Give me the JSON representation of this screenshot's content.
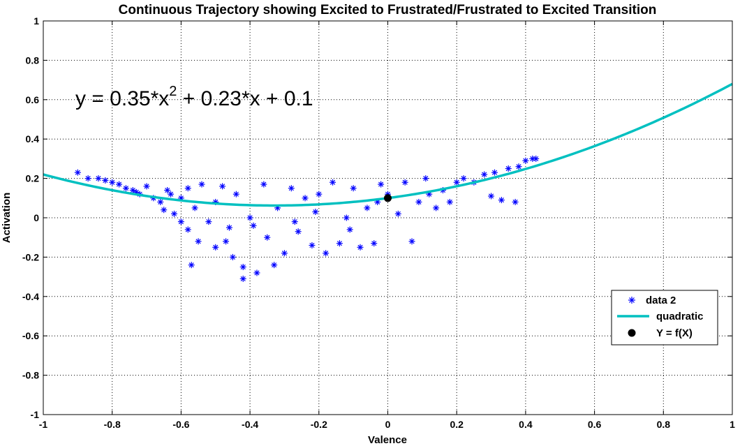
{
  "chart_data": {
    "type": "scatter",
    "title": "Continuous Trajectory showing Excited to Frustrated/Frustrated to Excited Transition",
    "xlabel": "Valence",
    "ylabel": "Activation",
    "xlim": [
      -1,
      1
    ],
    "ylim": [
      -1,
      1
    ],
    "grid": true,
    "xticks": [
      "-1",
      "-0.8",
      "-0.6",
      "-0.4",
      "-0.2",
      "0",
      "0.2",
      "0.4",
      "0.6",
      "0.8",
      "1"
    ],
    "yticks": [
      "1",
      "0.8",
      "0.6",
      "0.4",
      "0.2",
      "0",
      "-0.2",
      "-0.4",
      "-0.6",
      "-0.8",
      "-1"
    ],
    "annotation": "y = 0.35*x^2 + 0.23*x + 0.1",
    "legend_position": "bottom-right",
    "series": [
      {
        "name": "data 2",
        "kind": "scatter",
        "marker": "asterisk",
        "color": "#0000ff",
        "points": [
          [
            -0.9,
            0.23
          ],
          [
            -0.87,
            0.2
          ],
          [
            -0.84,
            0.2
          ],
          [
            -0.82,
            0.19
          ],
          [
            -0.8,
            0.18
          ],
          [
            -0.78,
            0.17
          ],
          [
            -0.76,
            0.15
          ],
          [
            -0.74,
            0.14
          ],
          [
            -0.72,
            0.12
          ],
          [
            -0.7,
            0.16
          ],
          [
            -0.68,
            0.1
          ],
          [
            -0.66,
            0.08
          ],
          [
            -0.65,
            0.04
          ],
          [
            -0.63,
            0.12
          ],
          [
            -0.62,
            0.02
          ],
          [
            -0.6,
            0.1
          ],
          [
            -0.6,
            -0.02
          ],
          [
            -0.58,
            0.15
          ],
          [
            -0.58,
            -0.06
          ],
          [
            -0.56,
            0.05
          ],
          [
            -0.55,
            -0.12
          ],
          [
            -0.54,
            0.17
          ],
          [
            -0.52,
            -0.02
          ],
          [
            -0.5,
            0.08
          ],
          [
            -0.5,
            -0.15
          ],
          [
            -0.48,
            0.16
          ],
          [
            -0.46,
            -0.05
          ],
          [
            -0.45,
            -0.2
          ],
          [
            -0.44,
            0.12
          ],
          [
            -0.42,
            -0.25
          ],
          [
            -0.42,
            -0.31
          ],
          [
            -0.4,
            0.0
          ],
          [
            -0.38,
            -0.28
          ],
          [
            -0.36,
            0.17
          ],
          [
            -0.35,
            -0.1
          ],
          [
            -0.33,
            -0.24
          ],
          [
            -0.32,
            0.05
          ],
          [
            -0.3,
            -0.18
          ],
          [
            -0.28,
            0.15
          ],
          [
            -0.26,
            -0.07
          ],
          [
            -0.24,
            0.1
          ],
          [
            -0.22,
            -0.14
          ],
          [
            -0.2,
            0.12
          ],
          [
            -0.18,
            -0.18
          ],
          [
            -0.16,
            0.18
          ],
          [
            -0.14,
            -0.13
          ],
          [
            -0.12,
            0.0
          ],
          [
            -0.1,
            0.15
          ],
          [
            -0.08,
            -0.15
          ],
          [
            -0.06,
            0.05
          ],
          [
            -0.04,
            -0.13
          ],
          [
            -0.02,
            0.17
          ],
          [
            0.0,
            0.12
          ],
          [
            0.03,
            0.02
          ],
          [
            0.05,
            0.18
          ],
          [
            0.07,
            -0.12
          ],
          [
            0.09,
            0.08
          ],
          [
            0.11,
            0.2
          ],
          [
            0.14,
            0.05
          ],
          [
            0.16,
            0.14
          ],
          [
            0.18,
            0.08
          ],
          [
            0.2,
            0.18
          ],
          [
            0.22,
            0.2
          ],
          [
            0.25,
            0.18
          ],
          [
            0.28,
            0.22
          ],
          [
            0.3,
            0.11
          ],
          [
            0.31,
            0.23
          ],
          [
            0.33,
            0.09
          ],
          [
            0.35,
            0.25
          ],
          [
            0.37,
            0.08
          ],
          [
            0.38,
            0.26
          ],
          [
            0.4,
            0.29
          ],
          [
            0.42,
            0.3
          ],
          [
            0.43,
            0.3
          ],
          [
            -0.57,
            -0.24
          ],
          [
            -0.47,
            -0.12
          ],
          [
            -0.39,
            -0.04
          ],
          [
            -0.27,
            -0.02
          ],
          [
            -0.21,
            0.03
          ],
          [
            -0.11,
            -0.06
          ],
          [
            -0.03,
            0.08
          ],
          [
            0.12,
            0.12
          ],
          [
            -0.73,
            0.13
          ],
          [
            -0.64,
            0.14
          ]
        ]
      },
      {
        "name": "quadratic",
        "kind": "line",
        "color": "#00c0c0",
        "coefficients": [
          0.35,
          0.23,
          0.1
        ]
      },
      {
        "name": "Y = f(X)",
        "kind": "marker",
        "marker": "circle",
        "color": "#000000",
        "points": [
          [
            0,
            0.1
          ]
        ]
      }
    ]
  }
}
